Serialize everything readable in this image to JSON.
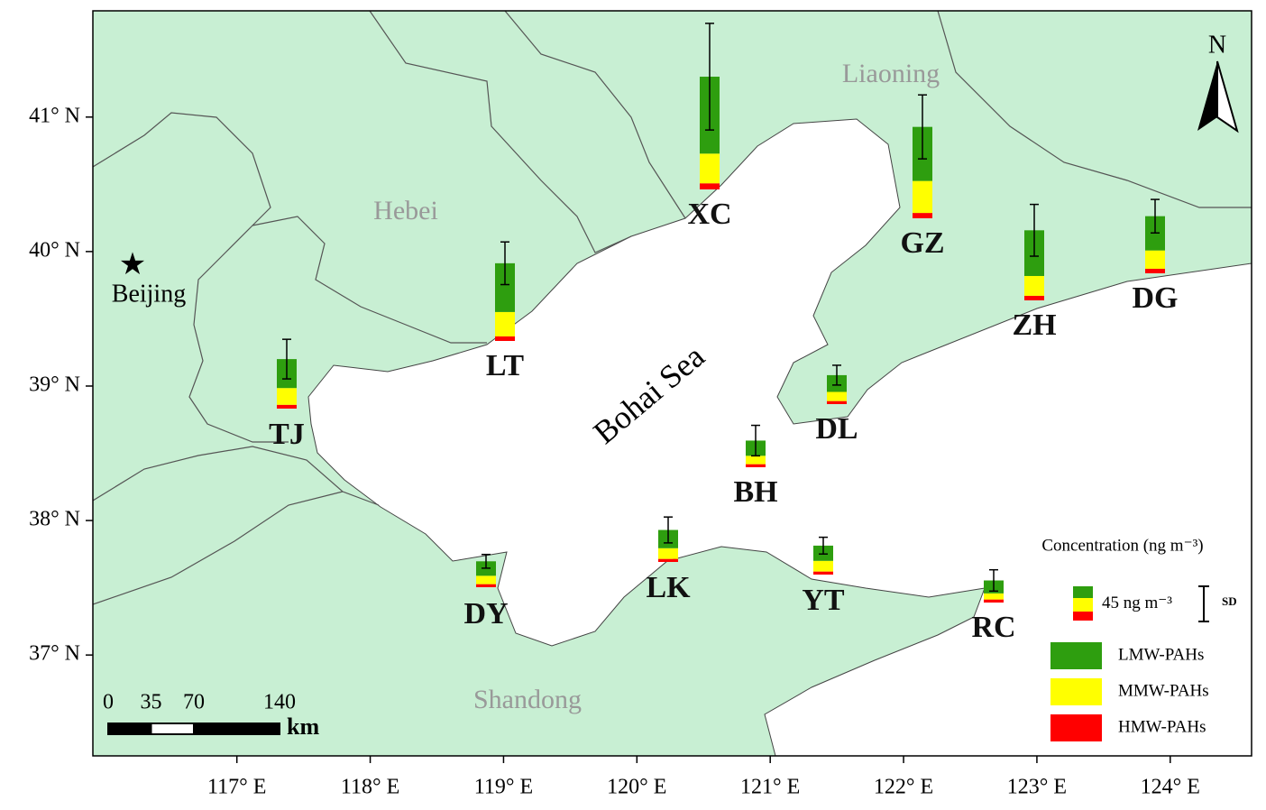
{
  "chart_data": {
    "type": "stacked_bar_map",
    "categories": [
      "XC",
      "GZ",
      "LT",
      "ZH",
      "DG",
      "TJ",
      "DL",
      "BH",
      "LK",
      "YT",
      "DY",
      "RC"
    ],
    "series": [
      {
        "name": "LMW-PAHs",
        "color": "#2e9e0f",
        "values": [
          101,
          71,
          64,
          60,
          45,
          38,
          22,
          20,
          24,
          20,
          19,
          17
        ]
      },
      {
        "name": "MMW-PAHs",
        "color": "#ffff00",
        "values": [
          39,
          42,
          32,
          26,
          24,
          22,
          12,
          11,
          14,
          14,
          11,
          8
        ]
      },
      {
        "name": "HMW-PAHs",
        "color": "#ff0000",
        "values": [
          8,
          7,
          6,
          6,
          6,
          5,
          4,
          4,
          4,
          4,
          4,
          4
        ]
      }
    ],
    "errors": [
      70,
      42,
      28,
      34,
      22,
      26,
      13,
      20,
      17,
      11,
      9,
      14
    ],
    "xlim": [
      115.92,
      124.61
    ],
    "ylim": [
      36.25,
      41.79
    ],
    "xticks": [
      {
        "value": 117,
        "label": "117° E"
      },
      {
        "value": 118,
        "label": "118° E"
      },
      {
        "value": 119,
        "label": "119° E"
      },
      {
        "value": 120,
        "label": "120° E"
      },
      {
        "value": 121,
        "label": "121° E"
      },
      {
        "value": 122,
        "label": "122° E"
      },
      {
        "value": 123,
        "label": "123° E"
      },
      {
        "value": 124,
        "label": "124° E"
      }
    ],
    "yticks": [
      {
        "value": 37,
        "label": "37° N"
      },
      {
        "value": 38,
        "label": "38° N"
      },
      {
        "value": 39,
        "label": "39° N"
      },
      {
        "value": 40,
        "label": "40° N"
      },
      {
        "value": 41,
        "label": "41° N"
      }
    ],
    "regions": [
      "Liaoning",
      "Hebei",
      "Shandong",
      "Bohai Sea"
    ],
    "city": "Beijing",
    "north": "N",
    "legend_title": "Concentration (ng m⁻³)",
    "legend_scale": {
      "value": 45,
      "unit": "ng m⁻³"
    },
    "sd_label": "SD",
    "scale_bar": {
      "ticks": [
        0,
        35,
        70,
        140
      ],
      "unit": "km"
    }
  }
}
